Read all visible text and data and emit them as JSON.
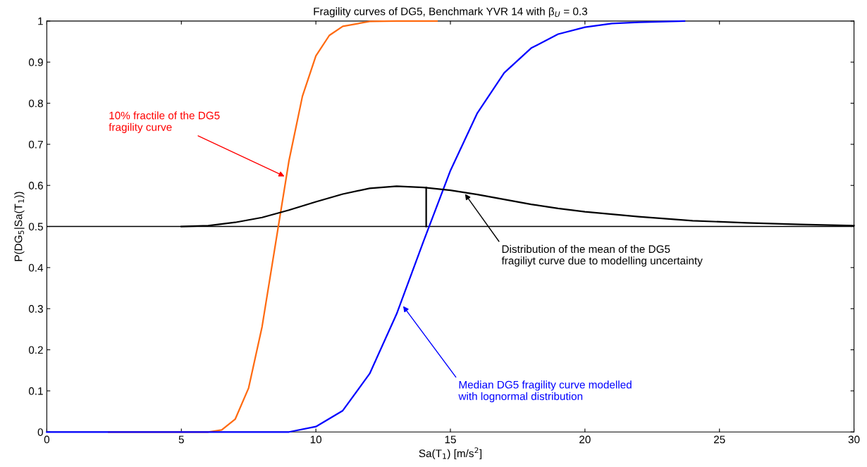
{
  "chart_data": {
    "type": "line",
    "title": "Fragility curves of DG5, Benchmark YVR 14 with β$_{U}$ = 0.3",
    "xlabel": "Sa(T$_{1}$) [m/s$^{2}$]",
    "ylabel": "P(DG$_{5}$|Sa(T$_{1}$))",
    "xlim": [
      0,
      30
    ],
    "ylim": [
      0,
      1
    ],
    "xticks": [
      0,
      5,
      10,
      15,
      20,
      25,
      30
    ],
    "yticks": [
      0,
      0.1,
      0.2,
      0.3,
      0.4,
      0.5,
      0.6,
      0.7,
      0.8,
      0.9,
      1
    ],
    "grid": false,
    "legend": false,
    "line_style": "solid",
    "marker": "none",
    "series": [
      {
        "color": "#ff6a10",
        "x": [
          2.3,
          5,
          6,
          6.5,
          7,
          7.5,
          8,
          8.5,
          9,
          9.5,
          10,
          10.5,
          11,
          12,
          13,
          14.5
        ],
        "values": [
          0,
          0,
          0,
          0.005,
          0.031,
          0.107,
          0.256,
          0.458,
          0.66,
          0.817,
          0.915,
          0.965,
          0.987,
          0.999,
          1,
          1
        ]
      },
      {
        "color": "#0000ff",
        "x": [
          0,
          8,
          9,
          10,
          11,
          12,
          13,
          14,
          15,
          16,
          17,
          18,
          19,
          20,
          21,
          22,
          23.7
        ],
        "values": [
          0,
          0,
          0,
          0.013,
          0.052,
          0.142,
          0.287,
          0.464,
          0.636,
          0.776,
          0.874,
          0.934,
          0.968,
          0.985,
          0.994,
          0.997,
          1
        ]
      },
      {
        "color": "#000000",
        "x": [
          5,
          6,
          7,
          8,
          9,
          10,
          11,
          12,
          13,
          14,
          15,
          16,
          17,
          18,
          19,
          20,
          22,
          24,
          26,
          28,
          30
        ],
        "values": [
          0.5,
          0.502,
          0.51,
          0.522,
          0.54,
          0.56,
          0.579,
          0.593,
          0.598,
          0.595,
          0.588,
          0.578,
          0.566,
          0.554,
          0.544,
          0.536,
          0.524,
          0.514,
          0.509,
          0.505,
          0.502
        ]
      },
      {
        "color": "#000000",
        "x": [
          14.1,
          14.1
        ],
        "values": [
          0.5,
          0.595
        ]
      }
    ],
    "ref_lines": [
      {
        "axis": "y",
        "value": 0.5,
        "color": "#000000"
      }
    ],
    "annotations": [
      {
        "text": "10% fractile of the DG5\nfragility curve",
        "x": 8.9,
        "y": 0.62
      },
      {
        "text": "Distribution of the mean of the DG5\nfragiliyt curve due to modelling uncertainty",
        "x": 15.5,
        "y": 0.583
      },
      {
        "text": "Median DG5 fragility curve modelled\nwith lognormal distribution",
        "x": 13.2,
        "y": 0.31
      }
    ]
  }
}
